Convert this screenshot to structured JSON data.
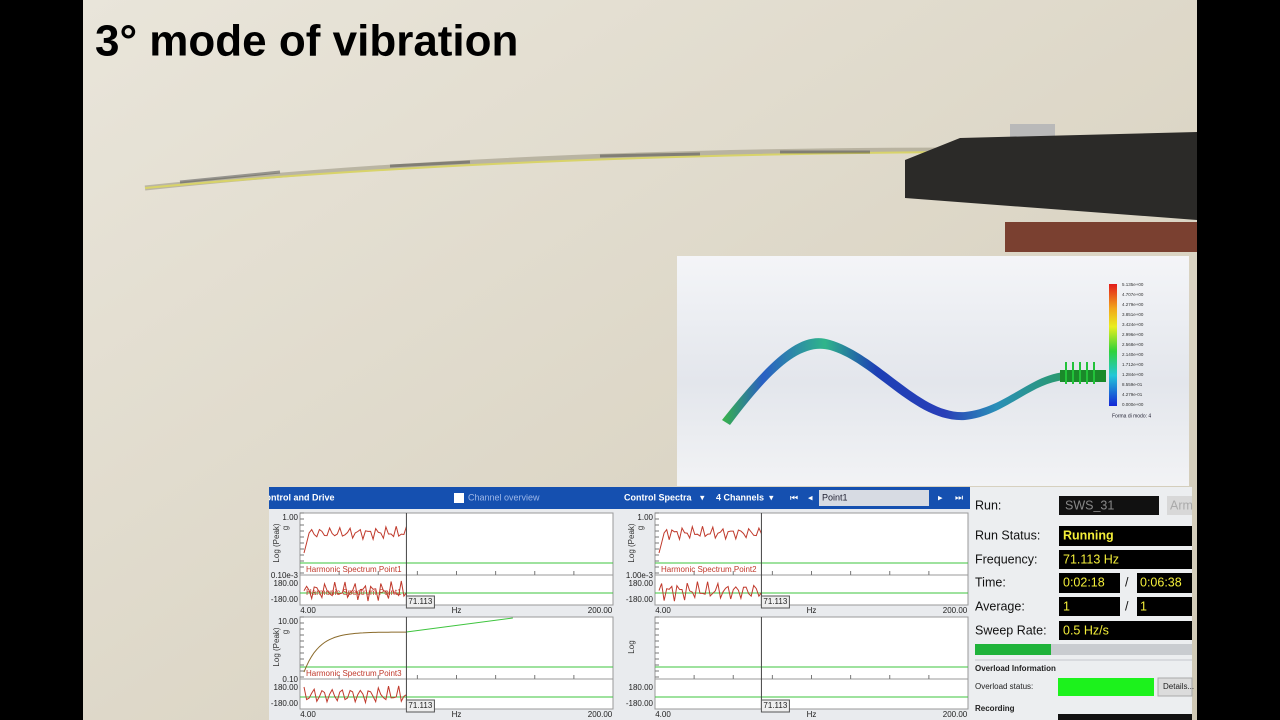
{
  "title": "3° mode of vibration",
  "fea": {
    "legend_ticks": [
      "5.135e+00",
      "4.707e+00",
      "4.279e+00",
      "3.851e+00",
      "3.424e+00",
      "2.996e+00",
      "2.568e+00",
      "2.140e+00",
      "1.712e+00",
      "1.284e+00",
      "8.559e-01",
      "4.279e-01",
      "0.000e+00"
    ],
    "caption": "Forma di modo: 4"
  },
  "toolbar": {
    "section": "Control and Drive",
    "overview": "Channel overview",
    "view": "Control Spectra",
    "channels": "4 Channels",
    "point": "Point1"
  },
  "plots": [
    {
      "unit": "g",
      "axis": "Log (Peak)",
      "mag_top": "1.00",
      "mag_bottom": "0.10e-3",
      "phase_top": "180.00",
      "phase_bottom": "-180.00",
      "x_start": "4.00",
      "x_unit": "Hz",
      "x_end": "200.00",
      "cursor": "71.113",
      "trace_labels": [
        "Harmonic Spectrum Point1",
        "Harmonic Spectrum Point1"
      ]
    },
    {
      "unit": "g",
      "axis": "Log (Peak)",
      "mag_top": "1.00",
      "mag_bottom": "1.00e-3",
      "phase_top": "180.00",
      "phase_bottom": "-180.00",
      "x_start": "4.00",
      "x_unit": "Hz",
      "x_end": "200.00",
      "cursor": "71.113",
      "trace_labels": [
        "Harmonic Spectrum Point2"
      ]
    },
    {
      "unit": "g",
      "axis": "Log (Peak)",
      "mag_top": "10.00",
      "mag_bottom": "0.10",
      "phase_top": "180.00",
      "phase_bottom": "-180.00",
      "x_start": "4.00",
      "x_unit": "Hz",
      "x_end": "200.00",
      "cursor": "71.113",
      "trace_labels": [
        "Harmonic Spectrum Point3"
      ]
    },
    {
      "axis": "Log",
      "phase_top": "180.00",
      "phase_bottom": "-180.00",
      "x_start": "4.00",
      "x_unit": "Hz",
      "x_end": "200.00",
      "cursor": "71.113",
      "trace_labels": []
    }
  ],
  "status": {
    "run_label": "Run:",
    "run": "SWS_31",
    "arm": "Arm",
    "run_status_label": "Run Status:",
    "run_status": "Running",
    "frequency_label": "Frequency:",
    "frequency": "71.113 Hz",
    "time_label": "Time:",
    "time_elapsed": "0:02:18",
    "time_sep": "/",
    "time_total": "0:06:38",
    "average_label": "Average:",
    "average": "1",
    "average_sep": "/",
    "average_total": "1",
    "sweep_rate_label": "Sweep Rate:",
    "sweep_rate": "0.5 Hz/s",
    "overload_heading": "Overload Information",
    "overload_label": "Overload status:",
    "details": "Details...",
    "recording": "Recording"
  }
}
